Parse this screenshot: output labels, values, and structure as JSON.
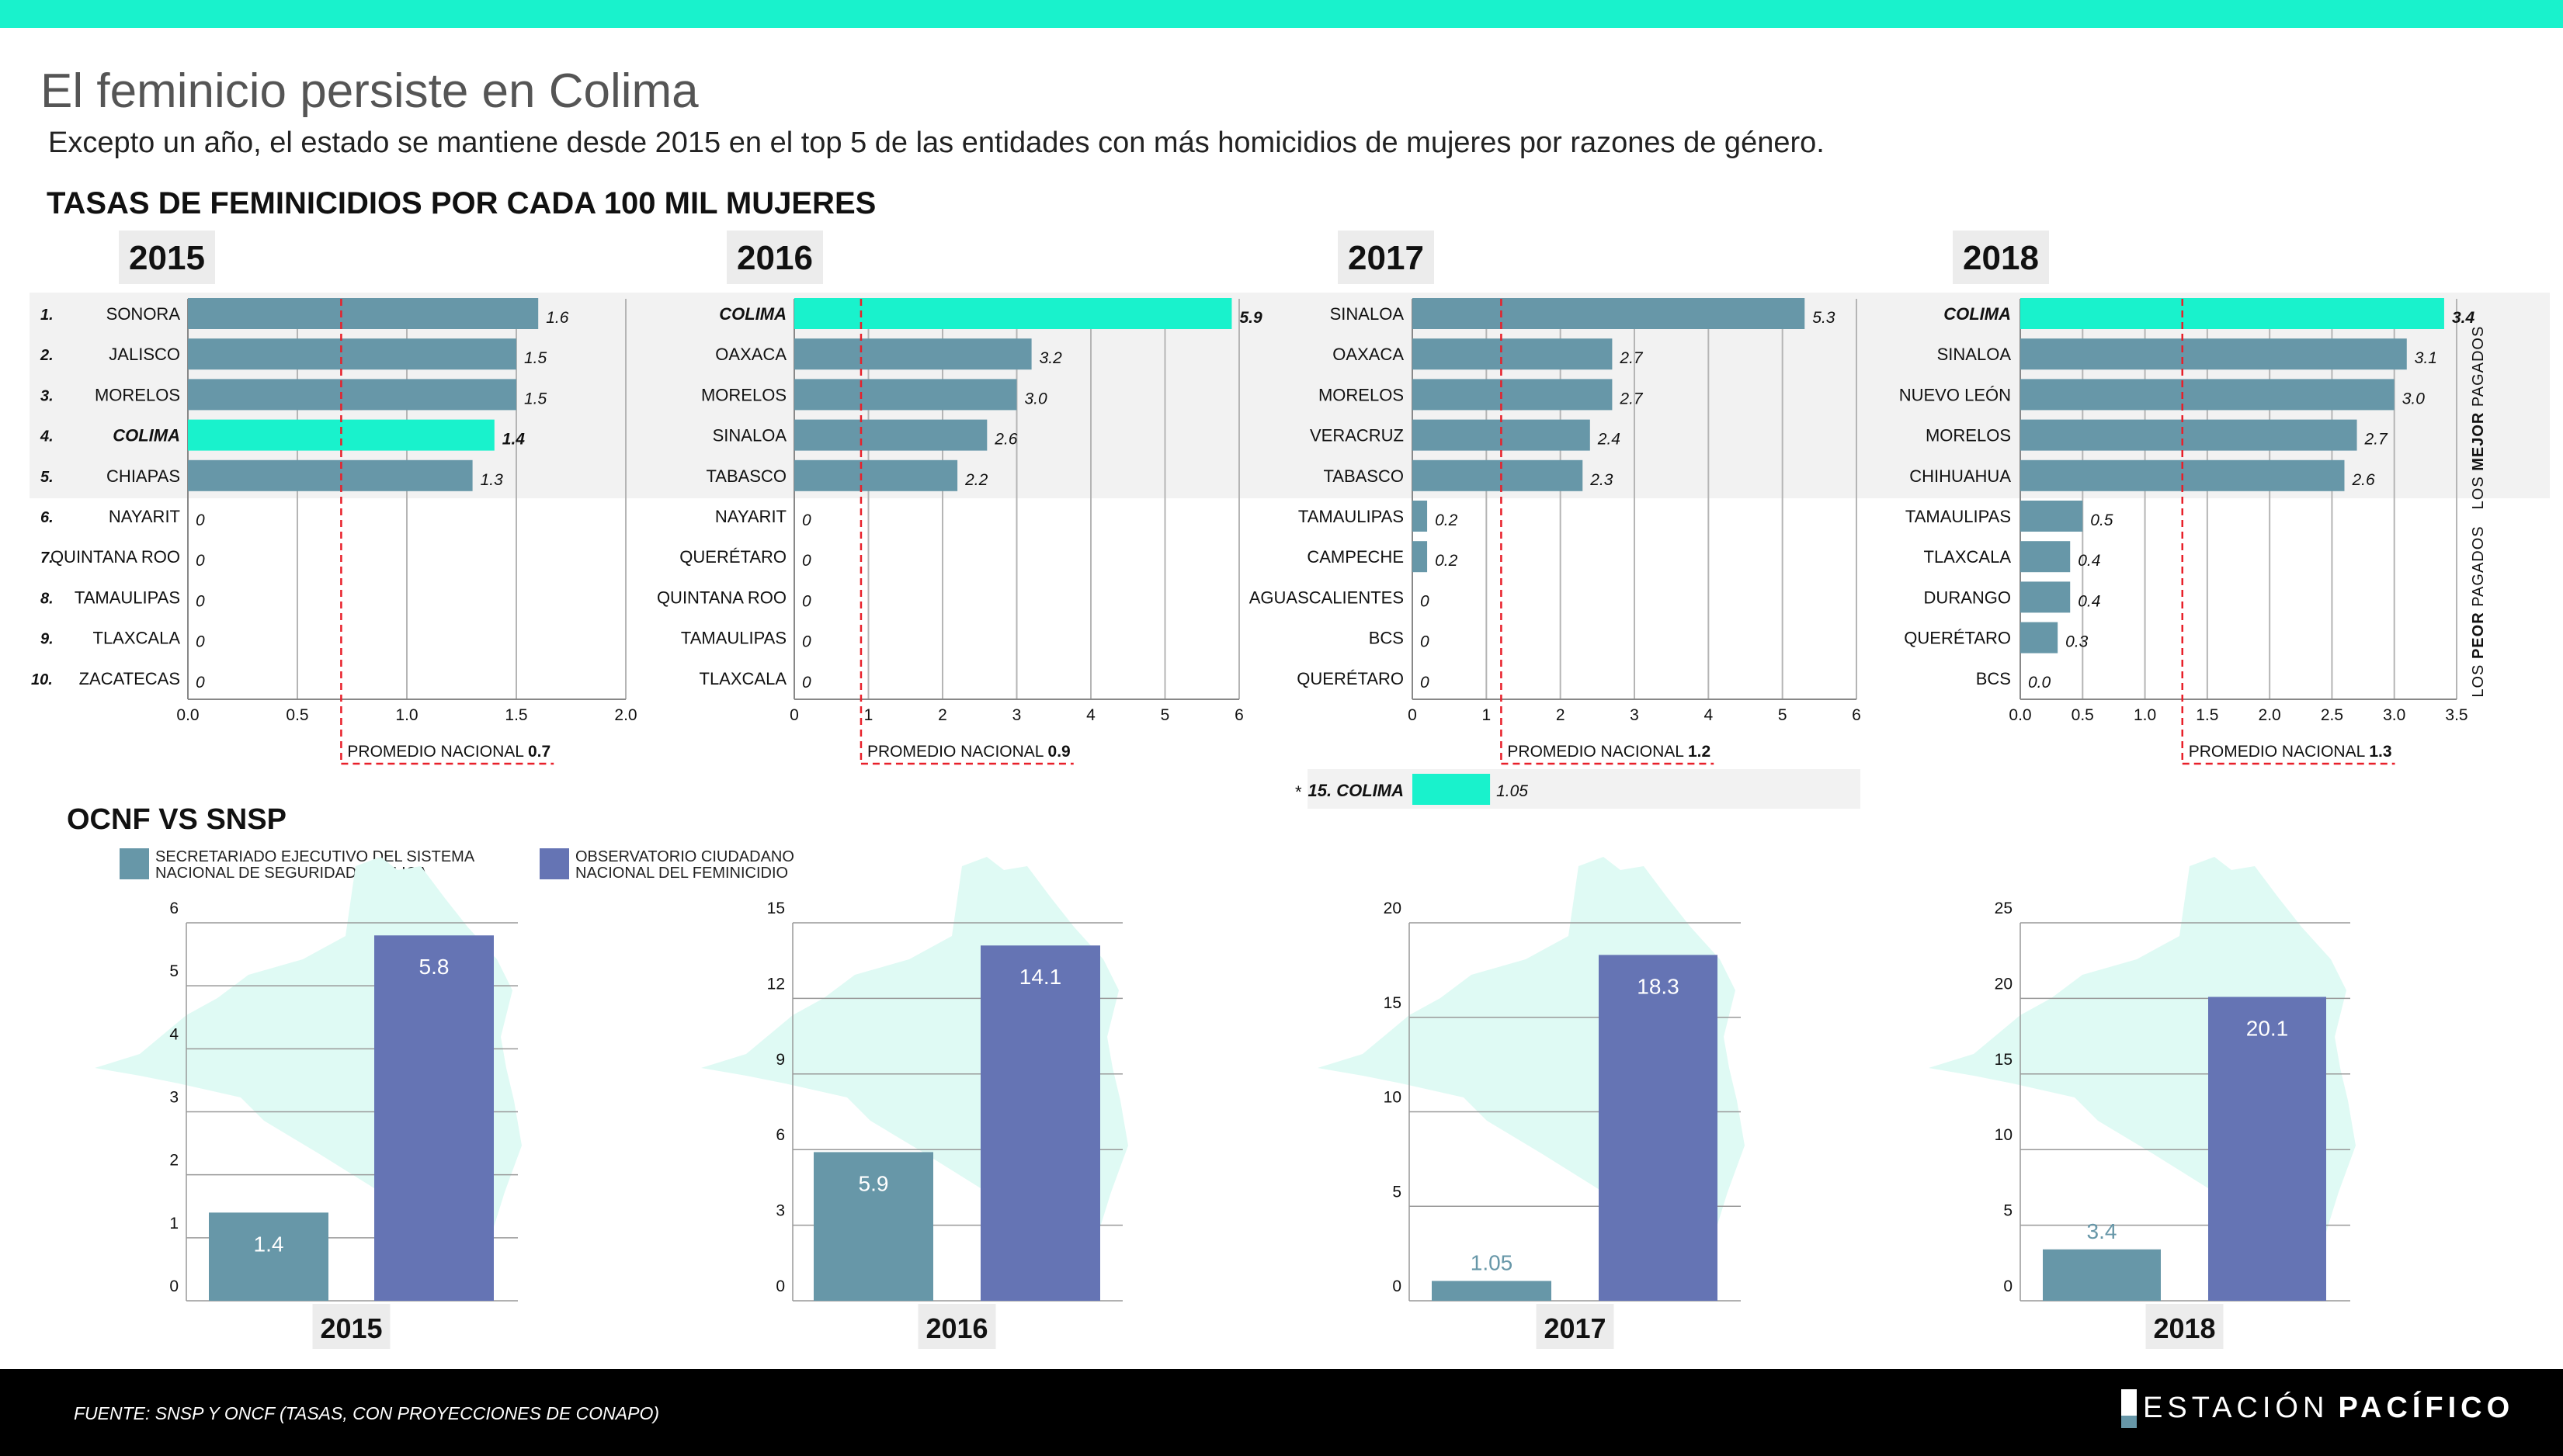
{
  "header": {
    "title": "El feminicio persiste en Colima",
    "subtitle": "Excepto un año, el estado se mantiene desde 2015 en el top 5 de las entidades con más homicidios de mujeres por razones de género.",
    "section_title": "TASAS DE FEMINICIDIOS POR CADA 100 MIL MUJERES"
  },
  "colors": {
    "accent": "#19f2cc",
    "snsp": "#6797a8",
    "ocnf": "#6574b4",
    "map": "#dffaf4",
    "average": "#e8202a",
    "band": "#f2f2f2"
  },
  "side_labels": {
    "best_prefix": "LOS ",
    "best_bold": "MEJOR",
    "best_suffix": " PAGADOS",
    "worst_prefix": "LOS ",
    "worst_bold": "PEOR",
    "worst_suffix": " PAGADOS"
  },
  "avg_label": "PROMEDIO NACIONAL ",
  "colima_2017": {
    "marker": "*",
    "label": "15. COLIMA",
    "value": 1.05,
    "value_label": "1.05"
  },
  "comparison": {
    "title": "OCNF VS SNSP",
    "legend": [
      {
        "line1": "SECRETARIADO EJECUTIVO DEL SISTEMA",
        "line2": "NACIONAL DE SEGURIDAD PÚBLICA"
      },
      {
        "line1": "OBSERVATORIO CIUDADANO",
        "line2": "NACIONAL DEL FEMINICIDIO"
      }
    ]
  },
  "footer": {
    "source": "FUENTE: SNSP Y ONCF (TASAS, CON PROYECCIONES DE CONAPO)",
    "logo_light": "ESTACIÓN",
    "logo_bold": "PACÍFICO"
  },
  "chart_data": [
    {
      "type": "bar",
      "orientation": "horizontal",
      "year": "2015",
      "ranks": [
        "1.",
        "2.",
        "3.",
        "4.",
        "5.",
        "6.",
        "7.",
        "8.",
        "9.",
        "10."
      ],
      "categories": [
        "SONORA",
        "JALISCO",
        "MORELOS",
        "COLIMA",
        "CHIAPAS",
        "NAYARIT",
        "QUINTANA ROO",
        "TAMAULIPAS",
        "TLAXCALA",
        "ZACATECAS"
      ],
      "values": [
        1.6,
        1.5,
        1.5,
        1.4,
        1.3,
        0,
        0,
        0,
        0,
        0
      ],
      "value_labels": [
        "1.6",
        "1.5",
        "1.5",
        "1.4",
        "1.3",
        "0",
        "0",
        "0",
        "0",
        "0"
      ],
      "highlight": "COLIMA",
      "average": 0.7,
      "average_label": "0.7",
      "xlim": [
        0,
        2.0
      ],
      "ticks": [
        0,
        0.5,
        1.0,
        1.5,
        2.0
      ],
      "tick_labels": [
        "0.0",
        "0.5",
        "1.0",
        "1.5",
        "2.0"
      ],
      "grid": true
    },
    {
      "type": "bar",
      "orientation": "horizontal",
      "year": "2016",
      "categories": [
        "COLIMA",
        "OAXACA",
        "MORELOS",
        "SINALOA",
        "TABASCO",
        "NAYARIT",
        "QUERÉTARO",
        "QUINTANA ROO",
        "TAMAULIPAS",
        "TLAXCALA"
      ],
      "values": [
        5.9,
        3.2,
        3.0,
        2.6,
        2.2,
        0,
        0,
        0,
        0,
        0
      ],
      "value_labels": [
        "5.9",
        "3.2",
        "3.0",
        "2.6",
        "2.2",
        "0",
        "0",
        "0",
        "0",
        "0"
      ],
      "highlight": "COLIMA",
      "average": 0.9,
      "average_label": "0.9",
      "xlim": [
        0,
        6
      ],
      "ticks": [
        0,
        1,
        2,
        3,
        4,
        5,
        6
      ],
      "tick_labels": [
        "0",
        "1",
        "2",
        "3",
        "4",
        "5",
        "6"
      ],
      "grid": true
    },
    {
      "type": "bar",
      "orientation": "horizontal",
      "year": "2017",
      "categories": [
        "SINALOA",
        "OAXACA",
        "MORELOS",
        "VERACRUZ",
        "TABASCO",
        "TAMAULIPAS",
        "CAMPECHE",
        "AGUASCALIENTES",
        "BCS",
        "QUERÉTARO"
      ],
      "values": [
        5.3,
        2.7,
        2.7,
        2.4,
        2.3,
        0.2,
        0.2,
        0,
        0,
        0
      ],
      "value_labels": [
        "5.3",
        "2.7",
        "2.7",
        "2.4",
        "2.3",
        "0.2",
        "0.2",
        "0",
        "0",
        "0"
      ],
      "highlight": "",
      "average": 1.2,
      "average_label": "1.2",
      "xlim": [
        0,
        6
      ],
      "ticks": [
        0,
        1,
        2,
        3,
        4,
        5,
        6
      ],
      "tick_labels": [
        "0",
        "1",
        "2",
        "3",
        "4",
        "5",
        "6"
      ],
      "grid": true
    },
    {
      "type": "bar",
      "orientation": "horizontal",
      "year": "2018",
      "categories": [
        "COLIMA",
        "SINALOA",
        "NUEVO LEÓN",
        "MORELOS",
        "CHIHUAHUA",
        "TAMAULIPAS",
        "TLAXCALA",
        "DURANGO",
        "QUERÉTARO",
        "BCS"
      ],
      "values": [
        3.4,
        3.1,
        3.0,
        2.7,
        2.6,
        0.5,
        0.4,
        0.4,
        0.3,
        0.0
      ],
      "value_labels": [
        "3.4",
        "3.1",
        "3.0",
        "2.7",
        "2.6",
        "0.5",
        "0.4",
        "0.4",
        "0.3",
        "0.0"
      ],
      "highlight": "COLIMA",
      "average": 1.3,
      "average_label": "1.3",
      "xlim": [
        0,
        3.5
      ],
      "ticks": [
        0,
        0.5,
        1.0,
        1.5,
        2.0,
        2.5,
        3.0,
        3.5
      ],
      "tick_labels": [
        "0.0",
        "0.5",
        "1.0",
        "1.5",
        "2.0",
        "2.5",
        "3.0",
        "3.5"
      ],
      "grid": true
    },
    {
      "type": "bar",
      "title": "OCNF VS SNSP",
      "year": "2015",
      "series_names": [
        "SNSP",
        "OCNF"
      ],
      "values": [
        1.4,
        5.8
      ],
      "value_labels": [
        "1.4",
        "5.8"
      ],
      "ylim": [
        0,
        6
      ],
      "ticks": [
        0,
        1,
        2,
        3,
        4,
        5,
        6
      ]
    },
    {
      "type": "bar",
      "year": "2016",
      "values": [
        5.9,
        14.1
      ],
      "value_labels": [
        "5.9",
        "14.1"
      ],
      "ylim": [
        0,
        15
      ],
      "ticks": [
        0,
        3,
        6,
        9,
        12,
        15
      ]
    },
    {
      "type": "bar",
      "year": "2017",
      "values": [
        1.05,
        18.3
      ],
      "value_labels": [
        "1.05",
        "18.3"
      ],
      "ylim": [
        0,
        20
      ],
      "ticks": [
        0,
        5,
        10,
        15,
        20
      ]
    },
    {
      "type": "bar",
      "year": "2018",
      "values": [
        3.4,
        20.1
      ],
      "value_labels": [
        "3.4",
        "20.1"
      ],
      "ylim": [
        0,
        25
      ],
      "ticks": [
        0,
        5,
        10,
        15,
        20,
        25
      ]
    }
  ]
}
